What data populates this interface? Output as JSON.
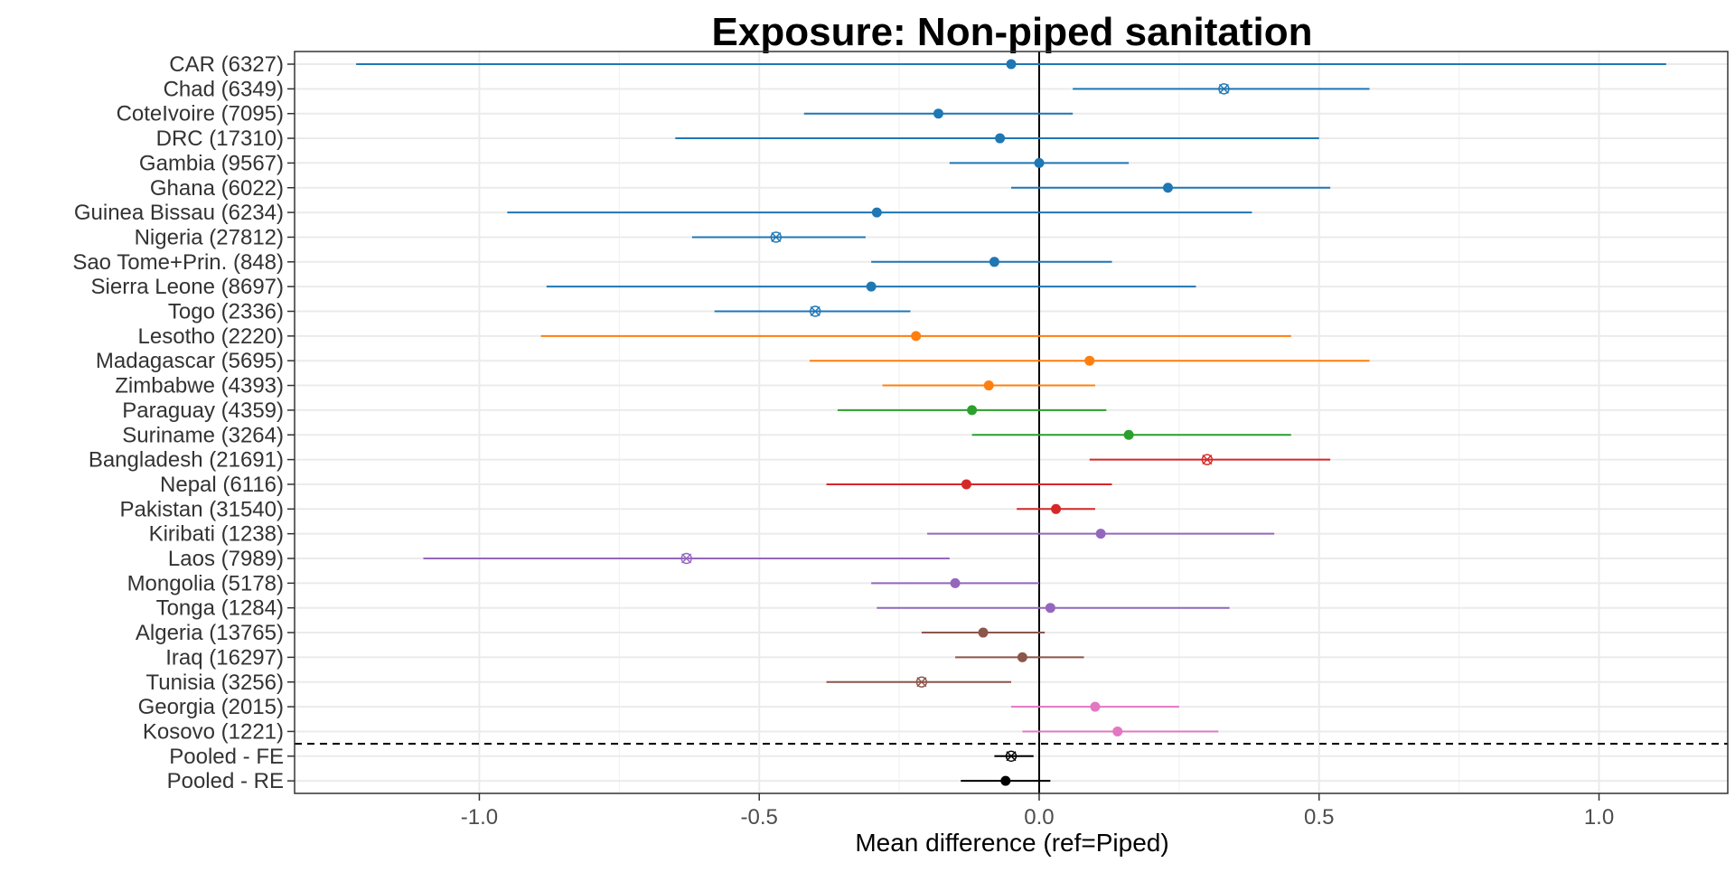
{
  "chart_data": {
    "type": "forest",
    "title": "Exposure: Non-piped sanitation",
    "xlabel": "Mean difference (ref=Piped)",
    "xlim": [
      -1.33,
      1.23
    ],
    "x_ticks": [
      -1.0,
      -0.5,
      0.0,
      0.5,
      1.0
    ],
    "x_tick_labels": [
      "-1.0",
      "-0.5",
      "0.0",
      "0.5",
      "1.0"
    ],
    "grid": true,
    "reference_line_x": 0,
    "separator_after": "Kosovo (1221)",
    "colors": {
      "blue": "#1f77b4",
      "orange": "#ff7f0e",
      "green": "#2ca02c",
      "red": "#d62728",
      "purple": "#9467bd",
      "brown": "#8c564b",
      "pink": "#e377c2",
      "black": "#000000"
    },
    "rows": [
      {
        "label": "CAR (6327)",
        "est": -0.05,
        "lo": -1.22,
        "hi": 1.12,
        "color": "#1f77b4",
        "marker": "dot"
      },
      {
        "label": "Chad (6349)",
        "est": 0.33,
        "lo": 0.06,
        "hi": 0.59,
        "color": "#1f77b4",
        "marker": "cross"
      },
      {
        "label": "CoteIvoire (7095)",
        "est": -0.18,
        "lo": -0.42,
        "hi": 0.06,
        "color": "#1f77b4",
        "marker": "dot"
      },
      {
        "label": "DRC (17310)",
        "est": -0.07,
        "lo": -0.65,
        "hi": 0.5,
        "color": "#1f77b4",
        "marker": "dot"
      },
      {
        "label": "Gambia (9567)",
        "est": 0.0,
        "lo": -0.16,
        "hi": 0.16,
        "color": "#1f77b4",
        "marker": "dot"
      },
      {
        "label": "Ghana (6022)",
        "est": 0.23,
        "lo": -0.05,
        "hi": 0.52,
        "color": "#1f77b4",
        "marker": "dot"
      },
      {
        "label": "Guinea Bissau (6234)",
        "est": -0.29,
        "lo": -0.95,
        "hi": 0.38,
        "color": "#1f77b4",
        "marker": "dot"
      },
      {
        "label": "Nigeria (27812)",
        "est": -0.47,
        "lo": -0.62,
        "hi": -0.31,
        "color": "#1f77b4",
        "marker": "cross"
      },
      {
        "label": "Sao Tome+Prin. (848)",
        "est": -0.08,
        "lo": -0.3,
        "hi": 0.13,
        "color": "#1f77b4",
        "marker": "dot"
      },
      {
        "label": "Sierra Leone (8697)",
        "est": -0.3,
        "lo": -0.88,
        "hi": 0.28,
        "color": "#1f77b4",
        "marker": "dot"
      },
      {
        "label": "Togo (2336)",
        "est": -0.4,
        "lo": -0.58,
        "hi": -0.23,
        "color": "#1f77b4",
        "marker": "cross"
      },
      {
        "label": "Lesotho (2220)",
        "est": -0.22,
        "lo": -0.89,
        "hi": 0.45,
        "color": "#ff7f0e",
        "marker": "dot"
      },
      {
        "label": "Madagascar (5695)",
        "est": 0.09,
        "lo": -0.41,
        "hi": 0.59,
        "color": "#ff7f0e",
        "marker": "dot"
      },
      {
        "label": "Zimbabwe (4393)",
        "est": -0.09,
        "lo": -0.28,
        "hi": 0.1,
        "color": "#ff7f0e",
        "marker": "dot"
      },
      {
        "label": "Paraguay (4359)",
        "est": -0.12,
        "lo": -0.36,
        "hi": 0.12,
        "color": "#2ca02c",
        "marker": "dot"
      },
      {
        "label": "Suriname (3264)",
        "est": 0.16,
        "lo": -0.12,
        "hi": 0.45,
        "color": "#2ca02c",
        "marker": "dot"
      },
      {
        "label": "Bangladesh (21691)",
        "est": 0.3,
        "lo": 0.09,
        "hi": 0.52,
        "color": "#d62728",
        "marker": "cross"
      },
      {
        "label": "Nepal (6116)",
        "est": -0.13,
        "lo": -0.38,
        "hi": 0.13,
        "color": "#d62728",
        "marker": "dot"
      },
      {
        "label": "Pakistan (31540)",
        "est": 0.03,
        "lo": -0.04,
        "hi": 0.1,
        "color": "#d62728",
        "marker": "dot"
      },
      {
        "label": "Kiribati (1238)",
        "est": 0.11,
        "lo": -0.2,
        "hi": 0.42,
        "color": "#9467bd",
        "marker": "dot"
      },
      {
        "label": "Laos (7989)",
        "est": -0.63,
        "lo": -1.1,
        "hi": -0.16,
        "color": "#9467bd",
        "marker": "cross"
      },
      {
        "label": "Mongolia (5178)",
        "est": -0.15,
        "lo": -0.3,
        "hi": 0.0,
        "color": "#9467bd",
        "marker": "dot"
      },
      {
        "label": "Tonga (1284)",
        "est": 0.02,
        "lo": -0.29,
        "hi": 0.34,
        "color": "#9467bd",
        "marker": "dot"
      },
      {
        "label": "Algeria (13765)",
        "est": -0.1,
        "lo": -0.21,
        "hi": 0.01,
        "color": "#8c564b",
        "marker": "dot"
      },
      {
        "label": "Iraq (16297)",
        "est": -0.03,
        "lo": -0.15,
        "hi": 0.08,
        "color": "#8c564b",
        "marker": "dot"
      },
      {
        "label": "Tunisia (3256)",
        "est": -0.21,
        "lo": -0.38,
        "hi": -0.05,
        "color": "#8c564b",
        "marker": "cross"
      },
      {
        "label": "Georgia (2015)",
        "est": 0.1,
        "lo": -0.05,
        "hi": 0.25,
        "color": "#e377c2",
        "marker": "dot"
      },
      {
        "label": "Kosovo (1221)",
        "est": 0.14,
        "lo": -0.03,
        "hi": 0.32,
        "color": "#e377c2",
        "marker": "dot"
      },
      {
        "label": "Pooled - FE",
        "est": -0.05,
        "lo": -0.08,
        "hi": -0.01,
        "color": "#000000",
        "marker": "cross"
      },
      {
        "label": "Pooled - RE",
        "est": -0.06,
        "lo": -0.14,
        "hi": 0.02,
        "color": "#000000",
        "marker": "dot"
      }
    ]
  }
}
